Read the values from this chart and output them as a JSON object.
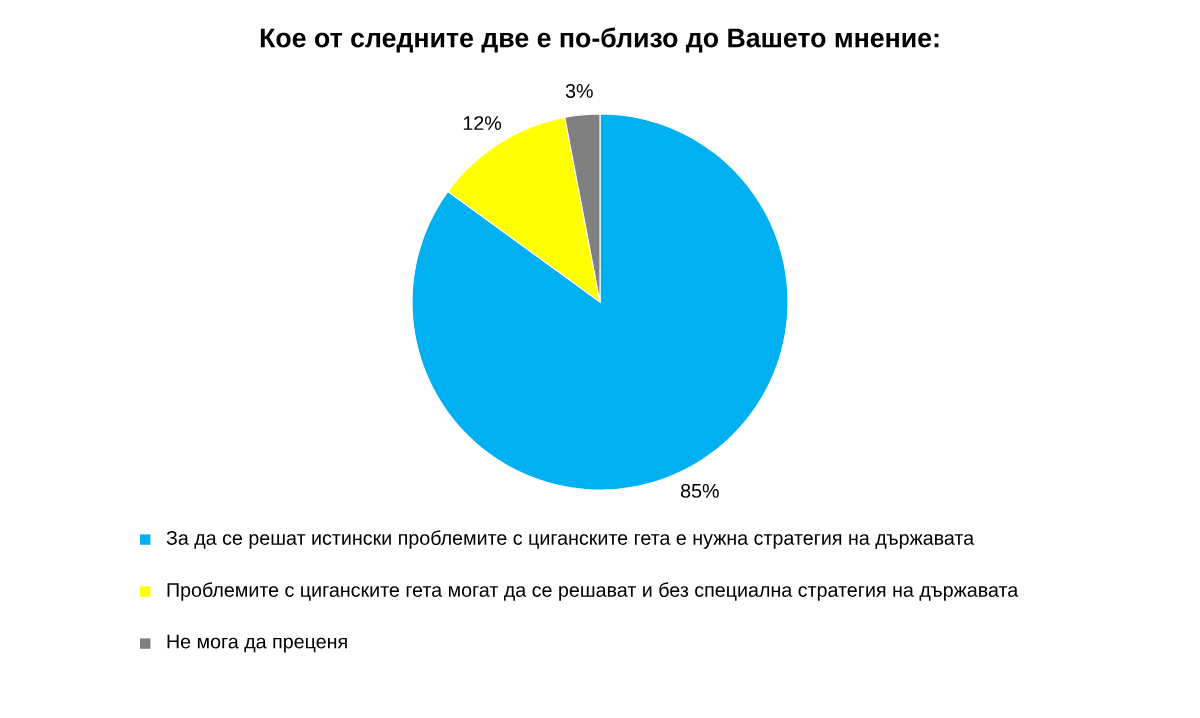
{
  "chart_data": {
    "type": "pie",
    "title": "Кое от следните две е по-близо до Вашето мнение:",
    "categories": [
      "За да се решат истински проблемите с циганските гета е нужна стратегия на държавата",
      "Проблемите с циганските гета могат да се решават и без специална стратегия на държавата",
      "Не мога да преценя"
    ],
    "values": [
      85,
      12,
      3
    ],
    "value_labels": [
      "85%",
      "12%",
      "3%"
    ],
    "colors": [
      "#00b0f0",
      "#ffff00",
      "#808080"
    ],
    "legend": "bottom"
  }
}
